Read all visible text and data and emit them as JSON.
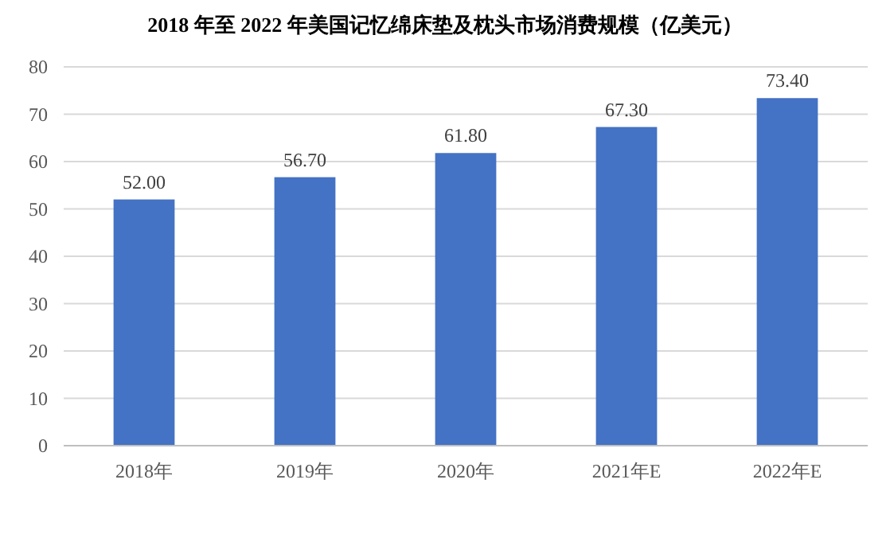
{
  "chart_data": {
    "type": "bar",
    "title": "2018 年至 2022 年美国记忆绵床垫及枕头市场消费规模（亿美元）",
    "categories": [
      "2018年",
      "2019年",
      "2020年",
      "2021年E",
      "2022年E"
    ],
    "values": [
      52,
      56.7,
      61.8,
      67.3,
      73.4
    ],
    "value_labels": [
      "52.00",
      "56.70",
      "61.80",
      "67.30",
      "73.40"
    ],
    "color": "#4472c4",
    "ylim": [
      0,
      80
    ],
    "yticks": [
      0,
      10,
      20,
      30,
      40,
      50,
      60,
      70,
      80
    ],
    "grid": "y"
  }
}
